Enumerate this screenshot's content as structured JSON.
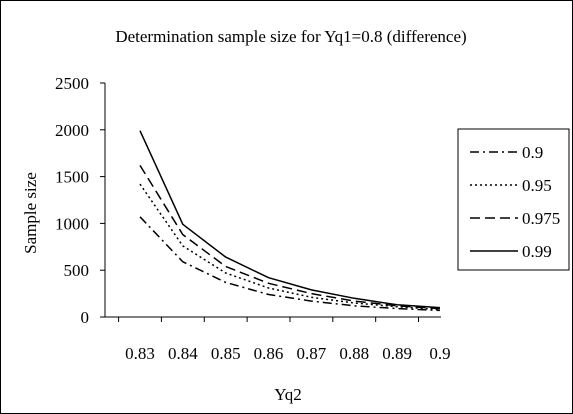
{
  "chart_data": {
    "type": "line",
    "title": "Determination sample size for Yq1=0.8 (difference)",
    "xlabel": "Yq2",
    "ylabel": "Sample size",
    "categories": [
      "0.83",
      "0.84",
      "0.85",
      "0.86",
      "0.87",
      "0.88",
      "0.89",
      "0.9"
    ],
    "ylim": [
      0,
      2500
    ],
    "yticks": [
      "0",
      "500",
      "1000",
      "1500",
      "2000",
      "2500"
    ],
    "grid": false,
    "legend_position": "right",
    "series": [
      {
        "name": "0.9",
        "dash": "dash-dot",
        "values": [
          1070,
          590,
          370,
          240,
          170,
          120,
          90,
          70
        ]
      },
      {
        "name": "0.95",
        "dash": "dotted",
        "values": [
          1420,
          760,
          470,
          310,
          210,
          150,
          110,
          80
        ]
      },
      {
        "name": "0.975",
        "dash": "dashed",
        "values": [
          1620,
          880,
          540,
          360,
          250,
          170,
          120,
          90
        ]
      },
      {
        "name": "0.99",
        "dash": "solid",
        "values": [
          1990,
          990,
          640,
          420,
          290,
          200,
          130,
          100
        ]
      }
    ]
  },
  "colors": {
    "line": "#000000",
    "background": "#ffffff"
  }
}
